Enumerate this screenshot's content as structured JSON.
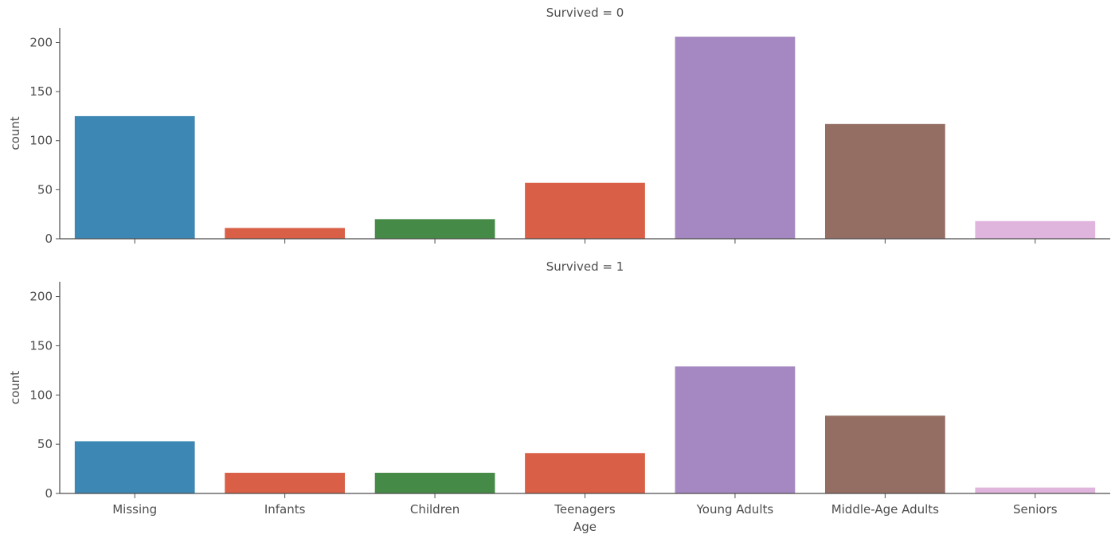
{
  "chart_data": {
    "type": "bar",
    "xlabel": "Age",
    "categories": [
      "Missing",
      "Infants",
      "Children",
      "Teenagers",
      "Young Adults",
      "Middle-Age Adults",
      "Seniors"
    ],
    "bar_colors": [
      "#3d87b5",
      "#d95f47",
      "#468a47",
      "#d95f47",
      "#a587c1",
      "#946e63",
      "#dfb5dd"
    ],
    "ylim": [
      0,
      215
    ],
    "yticks": [
      0,
      50,
      100,
      150,
      200
    ],
    "grid": false,
    "panels": [
      {
        "title": "Survived = 0",
        "ylabel": "count",
        "values": [
          125,
          11,
          20,
          57,
          206,
          117,
          18
        ]
      },
      {
        "title": "Survived = 1",
        "ylabel": "count",
        "values": [
          53,
          21,
          21,
          41,
          129,
          79,
          6
        ]
      }
    ]
  }
}
